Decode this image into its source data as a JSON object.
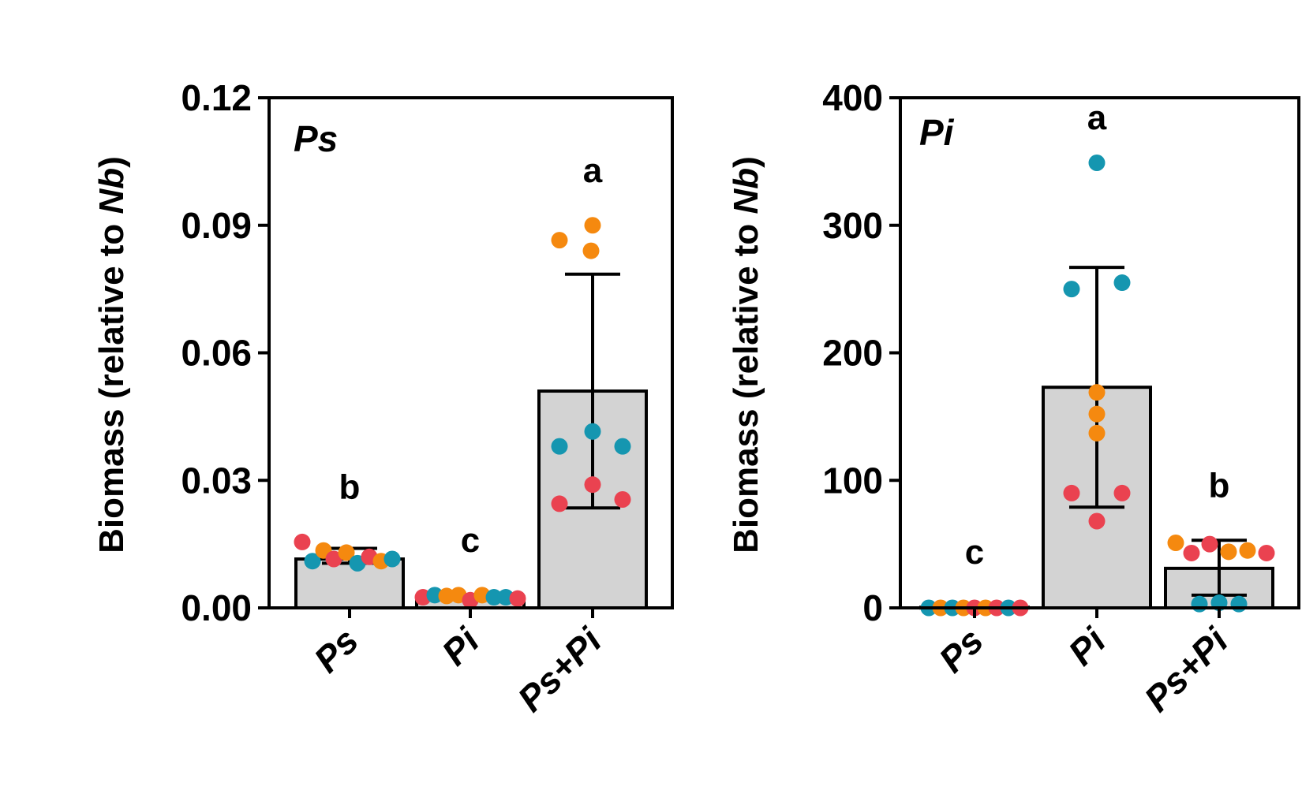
{
  "colors": {
    "bar_fill": "#d3d3d3",
    "axis": "#000000",
    "point_red": "#ea4250",
    "point_orange": "#f5890f",
    "point_teal": "#1596b0"
  },
  "chart_data": [
    {
      "type": "bar",
      "panel_label": "Ps",
      "ylabel_prefix": "Biomass (relative to ",
      "ylabel_italic": "Nb",
      "ylabel_suffix": ")",
      "ylim": [
        0,
        0.12
      ],
      "yticks": [
        0,
        0.03,
        0.06,
        0.09,
        0.12
      ],
      "ytick_labels": [
        "0.00",
        "0.03",
        "0.06",
        "0.09",
        "0.12"
      ],
      "categories": [
        "Ps",
        "Pi",
        "Ps+Pi"
      ],
      "values": [
        0.0115,
        0.0025,
        0.051
      ],
      "error_high": [
        0.014,
        0.003,
        0.0785
      ],
      "error_low": [
        0.0105,
        0.002,
        0.0235
      ],
      "significance": [
        "b",
        "c",
        "a"
      ],
      "points": [
        [
          {
            "v": 0.0155,
            "c": "red"
          },
          {
            "v": 0.011,
            "c": "teal"
          },
          {
            "v": 0.0135,
            "c": "orange"
          },
          {
            "v": 0.0115,
            "c": "red"
          },
          {
            "v": 0.013,
            "c": "orange"
          },
          {
            "v": 0.0105,
            "c": "teal"
          },
          {
            "v": 0.012,
            "c": "red"
          },
          {
            "v": 0.011,
            "c": "orange"
          },
          {
            "v": 0.0115,
            "c": "teal"
          }
        ],
        [
          {
            "v": 0.0025,
            "c": "red"
          },
          {
            "v": 0.003,
            "c": "teal"
          },
          {
            "v": 0.0028,
            "c": "orange"
          },
          {
            "v": 0.003,
            "c": "orange"
          },
          {
            "v": 0.0018,
            "c": "red"
          },
          {
            "v": 0.003,
            "c": "orange"
          },
          {
            "v": 0.0025,
            "c": "teal"
          },
          {
            "v": 0.0025,
            "c": "teal"
          },
          {
            "v": 0.0022,
            "c": "red"
          }
        ],
        [
          {
            "v": 0.0865,
            "c": "orange"
          },
          {
            "v": 0.09,
            "c": "orange"
          },
          {
            "v": 0.084,
            "c": "orange"
          },
          {
            "v": 0.038,
            "c": "teal"
          },
          {
            "v": 0.0415,
            "c": "teal"
          },
          {
            "v": 0.038,
            "c": "teal"
          },
          {
            "v": 0.029,
            "c": "red"
          },
          {
            "v": 0.0245,
            "c": "red"
          },
          {
            "v": 0.0255,
            "c": "red"
          }
        ]
      ]
    },
    {
      "type": "bar",
      "panel_label": "Pi",
      "ylabel_prefix": "Biomass (relative to ",
      "ylabel_italic": "Nb",
      "ylabel_suffix": ")",
      "ylim": [
        0,
        400
      ],
      "yticks": [
        0,
        100,
        200,
        300,
        400
      ],
      "ytick_labels": [
        "0",
        "100",
        "200",
        "300",
        "400"
      ],
      "categories": [
        "Ps",
        "Pi",
        "Ps+Pi"
      ],
      "values": [
        0.5,
        173,
        31
      ],
      "error_high": [
        0.5,
        267,
        53
      ],
      "error_low": [
        0.5,
        79,
        10
      ],
      "significance": [
        "c",
        "a",
        "b"
      ],
      "points": [
        [
          {
            "v": 0,
            "c": "teal"
          },
          {
            "v": 0,
            "c": "orange"
          },
          {
            "v": 0,
            "c": "teal"
          },
          {
            "v": 0,
            "c": "orange"
          },
          {
            "v": 0,
            "c": "red"
          },
          {
            "v": 0,
            "c": "orange"
          },
          {
            "v": 0,
            "c": "red"
          },
          {
            "v": 0,
            "c": "teal"
          },
          {
            "v": 0,
            "c": "red"
          }
        ],
        [
          {
            "v": 349,
            "c": "teal"
          },
          {
            "v": 250,
            "c": "teal"
          },
          {
            "v": 255,
            "c": "teal"
          },
          {
            "v": 169,
            "c": "orange"
          },
          {
            "v": 152,
            "c": "orange"
          },
          {
            "v": 137,
            "c": "orange"
          },
          {
            "v": 90,
            "c": "red"
          },
          {
            "v": 90,
            "c": "red"
          },
          {
            "v": 68,
            "c": "red"
          }
        ],
        [
          {
            "v": 51,
            "c": "orange"
          },
          {
            "v": 43,
            "c": "red"
          },
          {
            "v": 50,
            "c": "red"
          },
          {
            "v": 44,
            "c": "orange"
          },
          {
            "v": 45,
            "c": "orange"
          },
          {
            "v": 43,
            "c": "red"
          },
          {
            "v": 3,
            "c": "teal"
          },
          {
            "v": 4,
            "c": "teal"
          },
          {
            "v": 3,
            "c": "teal"
          }
        ]
      ]
    }
  ]
}
